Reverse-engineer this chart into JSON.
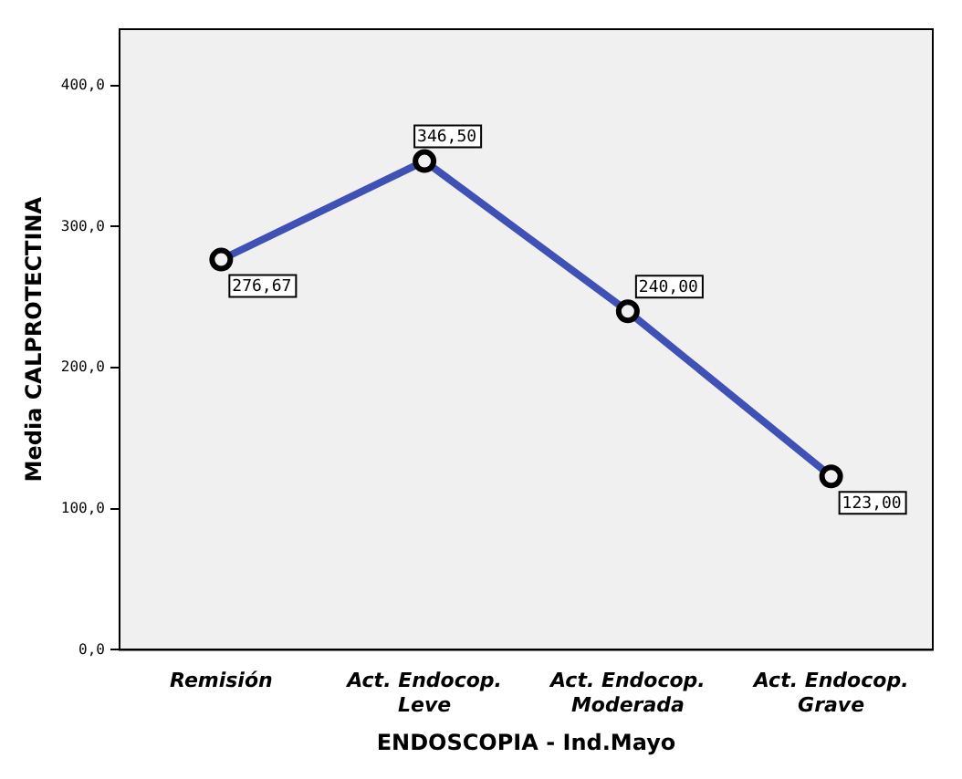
{
  "chart_data": {
    "type": "line",
    "xlabel": "ENDOSCOPIA - Ind.Mayo",
    "ylabel": "Media CALPROTECTINA",
    "categories": [
      "Remisión",
      "Act. Endocop.\nLeve",
      "Act. Endocop.\nModerada",
      "Act. Endocop.\nGrave"
    ],
    "series": [
      {
        "color": "#3f51b5",
        "values": [
          276.67,
          346.5,
          240,
          123
        ],
        "value_labels": [
          "276,67",
          "346,50",
          "240,00",
          "123,00"
        ]
      }
    ],
    "ylim": [
      0,
      440
    ],
    "yticks": [
      {
        "value": 0,
        "label": "0,0"
      },
      {
        "value": 100,
        "label": "100,0"
      },
      {
        "value": 200,
        "label": "200,0"
      },
      {
        "value": 300,
        "label": "300,0"
      },
      {
        "value": 400,
        "label": "400,0"
      }
    ],
    "marker": "circle",
    "line_style": "solid",
    "grid": false,
    "legend": false
  }
}
